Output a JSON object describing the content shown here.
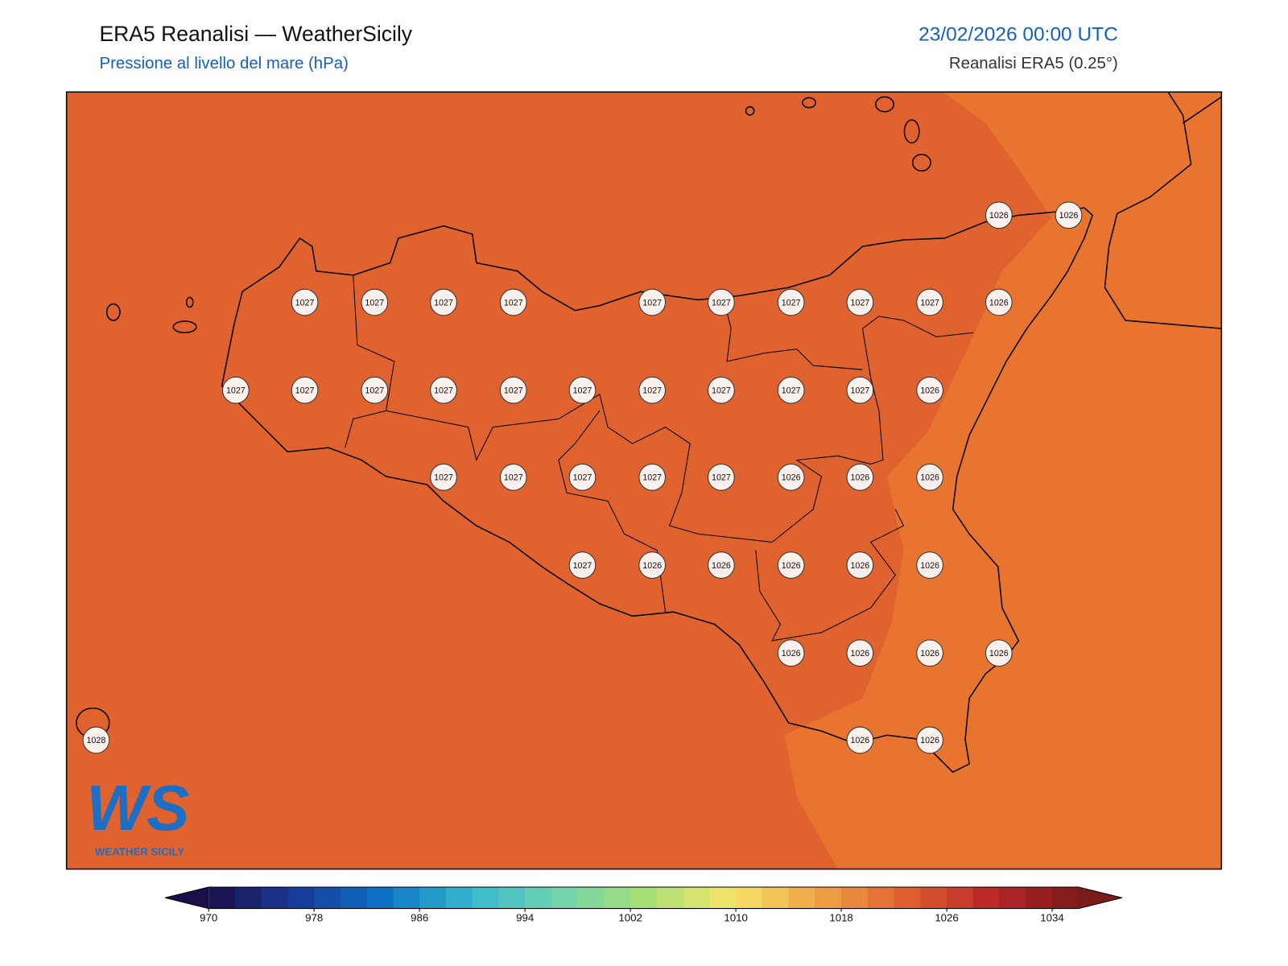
{
  "header": {
    "title": "ERA5 Reanalisi — WeatherSicily",
    "subtitle": "Pressione al livello del mare (hPa)",
    "datetime": "23/02/2026 00:00 UTC",
    "source": "Reanalisi ERA5 (0.25°)"
  },
  "stations": [
    1026,
    1026,
    1027,
    1027,
    1027,
    1027,
    1027,
    1027,
    1027,
    1027,
    1027,
    1026,
    1027,
    1027,
    1027,
    1027,
    1027,
    1027,
    1027,
    1027,
    1027,
    1027,
    1026,
    1027,
    1027,
    1027,
    1027,
    1027,
    1026,
    1026,
    1026,
    1027,
    1026,
    1026,
    1026,
    1026,
    1026,
    1026,
    1026,
    1026,
    1026,
    1028,
    1026,
    1026
  ],
  "colorbar": {
    "range": [
      970,
      1036
    ],
    "step": 2,
    "ticks": [
      970,
      978,
      986,
      994,
      1002,
      1010,
      1018,
      1026,
      1034
    ],
    "colormap": [
      "#1a0f4a",
      "#173a99",
      "#0b72c4",
      "#37b7d0",
      "#6fd4b0",
      "#a7df77",
      "#f6e56a",
      "#f0a446",
      "#e0622e",
      "#b92628",
      "#7a1a1a"
    ]
  },
  "logo": {
    "mark": "WS",
    "name": "WEATHER SICILY"
  }
}
